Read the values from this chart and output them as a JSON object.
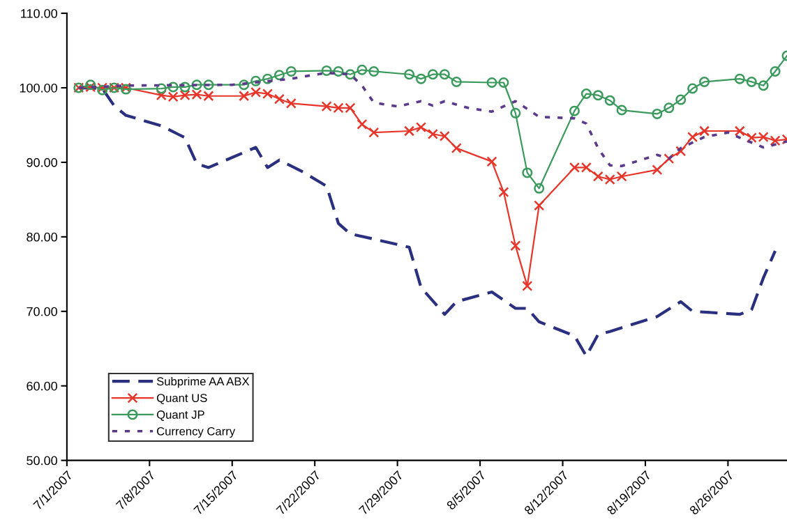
{
  "chart_data": {
    "type": "line",
    "ylim": [
      50,
      110
    ],
    "yticks": [
      {
        "value": 50,
        "label": "50.00"
      },
      {
        "value": 60,
        "label": "60.00"
      },
      {
        "value": 70,
        "label": "70.00"
      },
      {
        "value": 80,
        "label": "80.00"
      },
      {
        "value": 90,
        "label": "90.00"
      },
      {
        "value": 100,
        "label": "100.00"
      },
      {
        "value": 110,
        "label": "110.00"
      }
    ],
    "xlim": [
      "2007-07-01",
      "2007-08-31"
    ],
    "xticks": [
      {
        "value": "2007-07-01",
        "label": "7/1/2007"
      },
      {
        "value": "2007-07-08",
        "label": "7/8/2007"
      },
      {
        "value": "2007-07-15",
        "label": "7/15/2007"
      },
      {
        "value": "2007-07-22",
        "label": "7/22/2007"
      },
      {
        "value": "2007-07-29",
        "label": "7/29/2007"
      },
      {
        "value": "2007-08-05",
        "label": "8/5/2007"
      },
      {
        "value": "2007-08-12",
        "label": "8/12/2007"
      },
      {
        "value": "2007-08-19",
        "label": "8/19/2007"
      },
      {
        "value": "2007-08-26",
        "label": "8/26/2007"
      }
    ],
    "grid": false,
    "legend": "bottom left",
    "series": [
      {
        "name": "Subprime AA ABX",
        "color": "#2b2f7f",
        "line_style": "dashed",
        "marker": "none",
        "x": [
          "2007-07-02",
          "2007-07-04",
          "2007-07-05",
          "2007-07-06",
          "2007-07-09",
          "2007-07-11",
          "2007-07-12",
          "2007-07-13",
          "2007-07-17",
          "2007-07-18",
          "2007-07-19",
          "2007-07-21",
          "2007-07-23",
          "2007-07-24",
          "2007-07-25",
          "2007-07-27",
          "2007-07-30",
          "2007-07-31",
          "2007-08-02",
          "2007-08-03",
          "2007-08-06",
          "2007-08-08",
          "2007-08-09",
          "2007-08-10",
          "2007-08-13",
          "2007-08-14",
          "2007-08-15",
          "2007-08-16",
          "2007-08-20",
          "2007-08-22",
          "2007-08-23",
          "2007-08-27",
          "2007-08-28",
          "2007-08-29",
          "2007-08-30"
        ],
        "values": [
          100.0,
          99.9,
          97.6,
          96.3,
          94.9,
          93.3,
          89.8,
          89.3,
          92.0,
          89.3,
          90.3,
          88.7,
          86.8,
          81.8,
          80.4,
          79.7,
          78.6,
          73.2,
          69.6,
          71.3,
          72.6,
          70.4,
          70.4,
          68.6,
          66.7,
          64.0,
          66.9,
          67.3,
          69.3,
          71.3,
          70.0,
          69.6,
          70.2,
          74.5,
          78.1
        ]
      },
      {
        "name": "Quant US",
        "color": "#e8352a",
        "line_style": "solid",
        "marker": "cross",
        "x": [
          "2007-07-02",
          "2007-07-03",
          "2007-07-04",
          "2007-07-05",
          "2007-07-06",
          "2007-07-09",
          "2007-07-10",
          "2007-07-11",
          "2007-07-12",
          "2007-07-13",
          "2007-07-16",
          "2007-07-17",
          "2007-07-18",
          "2007-07-19",
          "2007-07-20",
          "2007-07-23",
          "2007-07-24",
          "2007-07-25",
          "2007-07-26",
          "2007-07-27",
          "2007-07-30",
          "2007-07-31",
          "2007-08-01",
          "2007-08-02",
          "2007-08-03",
          "2007-08-06",
          "2007-08-07",
          "2007-08-08",
          "2007-08-09",
          "2007-08-10",
          "2007-08-13",
          "2007-08-14",
          "2007-08-15",
          "2007-08-16",
          "2007-08-17",
          "2007-08-20",
          "2007-08-21",
          "2007-08-22",
          "2007-08-23",
          "2007-08-24",
          "2007-08-27",
          "2007-08-28",
          "2007-08-29",
          "2007-08-30",
          "2007-08-31"
        ],
        "values": [
          100.0,
          100.1,
          100.0,
          100.0,
          100.0,
          99.0,
          98.8,
          99.0,
          99.1,
          98.9,
          98.9,
          99.4,
          99.2,
          98.5,
          97.9,
          97.5,
          97.3,
          97.3,
          95.1,
          94.0,
          94.2,
          94.7,
          93.8,
          93.5,
          91.9,
          90.1,
          86.0,
          78.8,
          73.4,
          84.2,
          89.3,
          89.3,
          88.1,
          87.7,
          88.1,
          89.0,
          90.5,
          91.5,
          93.4,
          94.2,
          94.2,
          93.3,
          93.4,
          92.9,
          93.1
        ]
      },
      {
        "name": "Quant JP",
        "color": "#3a9a5c",
        "line_style": "solid",
        "marker": "circle",
        "x": [
          "2007-07-02",
          "2007-07-03",
          "2007-07-04",
          "2007-07-05",
          "2007-07-06",
          "2007-07-09",
          "2007-07-10",
          "2007-07-11",
          "2007-07-12",
          "2007-07-13",
          "2007-07-16",
          "2007-07-17",
          "2007-07-18",
          "2007-07-19",
          "2007-07-20",
          "2007-07-23",
          "2007-07-24",
          "2007-07-25",
          "2007-07-26",
          "2007-07-27",
          "2007-07-30",
          "2007-07-31",
          "2007-08-01",
          "2007-08-02",
          "2007-08-03",
          "2007-08-06",
          "2007-08-07",
          "2007-08-08",
          "2007-08-09",
          "2007-08-10",
          "2007-08-13",
          "2007-08-14",
          "2007-08-15",
          "2007-08-16",
          "2007-08-17",
          "2007-08-20",
          "2007-08-21",
          "2007-08-22",
          "2007-08-23",
          "2007-08-24",
          "2007-08-27",
          "2007-08-28",
          "2007-08-29",
          "2007-08-30",
          "2007-08-31"
        ],
        "values": [
          100.0,
          100.4,
          99.7,
          100.0,
          99.8,
          99.9,
          100.1,
          100.1,
          100.4,
          100.4,
          100.4,
          100.9,
          101.2,
          101.7,
          102.2,
          102.3,
          102.2,
          101.8,
          102.4,
          102.2,
          101.8,
          101.2,
          101.8,
          101.8,
          100.8,
          100.7,
          100.7,
          96.6,
          88.6,
          86.5,
          96.9,
          99.2,
          99.0,
          98.3,
          97.0,
          96.5,
          97.3,
          98.4,
          99.9,
          100.8,
          101.2,
          100.8,
          100.3,
          102.2,
          104.3
        ]
      },
      {
        "name": "Currency Carry",
        "color": "#5b3a8c",
        "line_style": "dotted",
        "marker": "none",
        "x": [
          "2007-07-02",
          "2007-07-06",
          "2007-07-15",
          "2007-07-20",
          "2007-07-21",
          "2007-07-23",
          "2007-07-25",
          "2007-07-26",
          "2007-07-27",
          "2007-07-29",
          "2007-07-31",
          "2007-08-01",
          "2007-08-02",
          "2007-08-04",
          "2007-08-06",
          "2007-08-08",
          "2007-08-10",
          "2007-08-13",
          "2007-08-14",
          "2007-08-15",
          "2007-08-16",
          "2007-08-17",
          "2007-08-20",
          "2007-08-21",
          "2007-08-22",
          "2007-08-24",
          "2007-08-26",
          "2007-08-27",
          "2007-08-29",
          "2007-08-31"
        ],
        "values": [
          100.0,
          100.3,
          100.4,
          101.2,
          101.5,
          102.0,
          101.8,
          100.3,
          98.0,
          97.5,
          98.2,
          97.6,
          98.2,
          97.3,
          96.8,
          98.2,
          96.1,
          95.9,
          95.2,
          91.9,
          89.6,
          89.5,
          91.0,
          90.5,
          91.9,
          93.4,
          94.0,
          93.3,
          92.0,
          92.8
        ]
      }
    ]
  }
}
